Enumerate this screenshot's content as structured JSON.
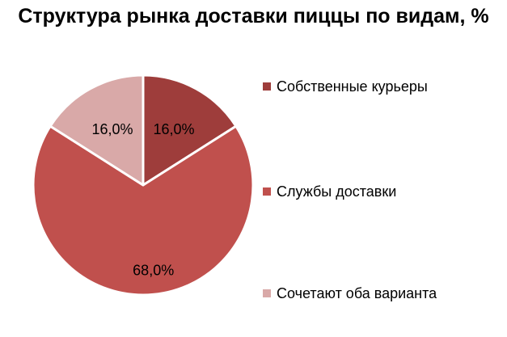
{
  "chart_data": {
    "type": "pie",
    "title": "Структура рынка доставки пиццы по видам, %",
    "legend_position": "right",
    "slices": [
      {
        "label": "Собственные курьеры",
        "value": 16.0,
        "display": "16,0%",
        "color": "#9E3D3B"
      },
      {
        "label": "Службы доставки",
        "value": 68.0,
        "display": "68,0%",
        "color": "#C0504D"
      },
      {
        "label": "Сочетают оба варианта",
        "value": 16.0,
        "display": "16,0%",
        "color": "#D9A9A8"
      }
    ]
  }
}
